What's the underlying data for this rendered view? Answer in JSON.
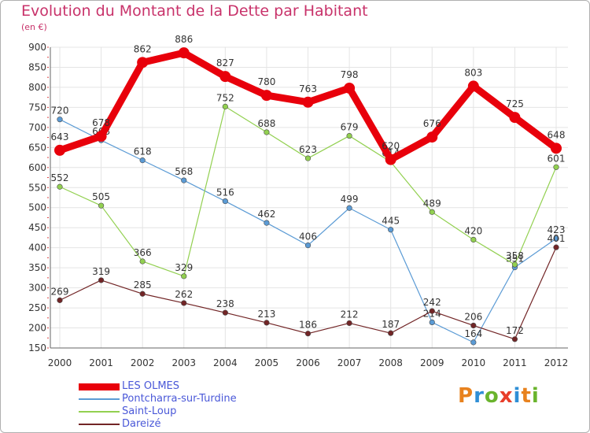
{
  "title": "Evolution du Montant de la Dette par Habitant",
  "subtitle": "(en €)",
  "brand": "Proxiti",
  "chart_data": {
    "type": "line",
    "title": "Evolution du Montant de la Dette par Habitant",
    "ylabel": "(en €)",
    "xlabel": "",
    "categories": [
      "2000",
      "2001",
      "2002",
      "2003",
      "2004",
      "2005",
      "2006",
      "2007",
      "2008",
      "2009",
      "2010",
      "2011",
      "2012"
    ],
    "ylim": [
      150,
      900
    ],
    "yticks": [
      150,
      200,
      250,
      300,
      350,
      400,
      450,
      500,
      550,
      600,
      650,
      700,
      750,
      800,
      850,
      900
    ],
    "grid": true,
    "legend_position": "bottom-left",
    "series": [
      {
        "name": "LES OLMES",
        "color": "#e8000b",
        "values": [
          643,
          678,
          862,
          886,
          827,
          780,
          763,
          798,
          620,
          676,
          803,
          725,
          648
        ]
      },
      {
        "name": "Pontcharra-sur-Turdine",
        "color": "#5b9bd5",
        "values": [
          720,
          668,
          618,
          568,
          516,
          462,
          406,
          499,
          445,
          214,
          164,
          351,
          423
        ]
      },
      {
        "name": "Saint-Loup",
        "color": "#92d050",
        "values": [
          552,
          505,
          366,
          329,
          752,
          688,
          623,
          679,
          614,
          489,
          420,
          358,
          601
        ]
      },
      {
        "name": "Dareizé",
        "color": "#722526",
        "values": [
          269,
          319,
          285,
          262,
          238,
          213,
          186,
          212,
          187,
          242,
          206,
          172,
          401
        ]
      }
    ]
  }
}
